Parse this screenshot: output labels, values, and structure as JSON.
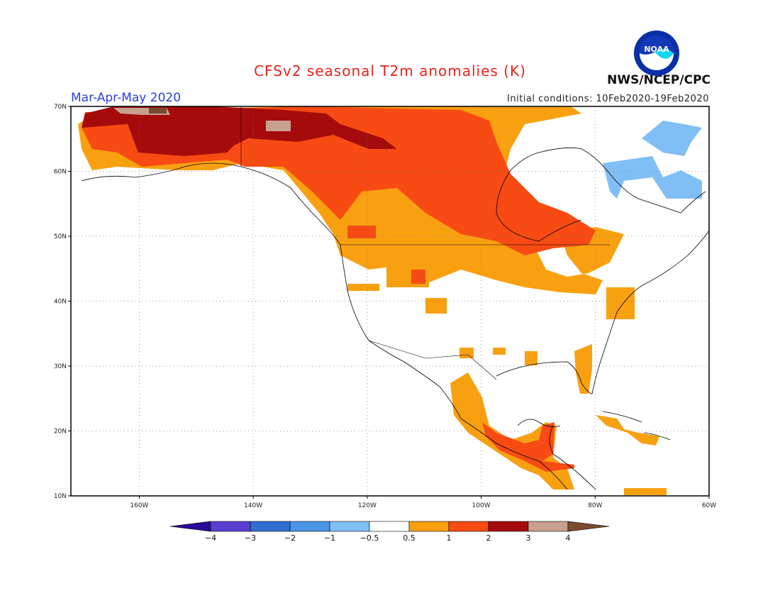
{
  "header": {
    "title": "CFSv2 seasonal T2m anomalies (K)",
    "season": "Mar-Apr-May 2020",
    "initial_conditions": "Initial conditions: 10Feb2020-19Feb2020",
    "agency": "NWS/NCEP/CPC",
    "logo_text": "NOAA"
  },
  "map": {
    "lon_range": [
      -172,
      -60
    ],
    "lat_range": [
      10,
      70
    ],
    "lon_ticks": [
      {
        "value": -160,
        "label": "160W"
      },
      {
        "value": -140,
        "label": "140W"
      },
      {
        "value": -120,
        "label": "120W"
      },
      {
        "value": -100,
        "label": "100W"
      },
      {
        "value": -80,
        "label": "80W"
      },
      {
        "value": -60,
        "label": "60W"
      }
    ],
    "lat_ticks": [
      {
        "value": 70,
        "label": "70N"
      },
      {
        "value": 60,
        "label": "60N"
      },
      {
        "value": 50,
        "label": "50N"
      },
      {
        "value": 40,
        "label": "40N"
      },
      {
        "value": 30,
        "label": "30N"
      },
      {
        "value": 20,
        "label": "20N"
      },
      {
        "value": 10,
        "label": "10N"
      }
    ],
    "grid": "dotted"
  },
  "colorbar": {
    "labels": [
      "-4",
      "-3",
      "-2",
      "-1",
      "-0.5",
      "0.5",
      "1",
      "2",
      "3",
      "4"
    ],
    "colors": [
      "#2a0a9a",
      "#5a3fd0",
      "#2e6fd0",
      "#4a95e8",
      "#80bff5",
      "#ffffff",
      "#f9a011",
      "#f74b13",
      "#a50b0b",
      "#c8a090",
      "#7a4a30"
    ]
  },
  "colors": {
    "c1": "#f9a011",
    "c2": "#f74b13",
    "c3": "#a50b0b",
    "c4": "#c8a090",
    "c5": "#7a4a30",
    "neg1": "#80bff5",
    "neg2": "#4a95e8"
  }
}
